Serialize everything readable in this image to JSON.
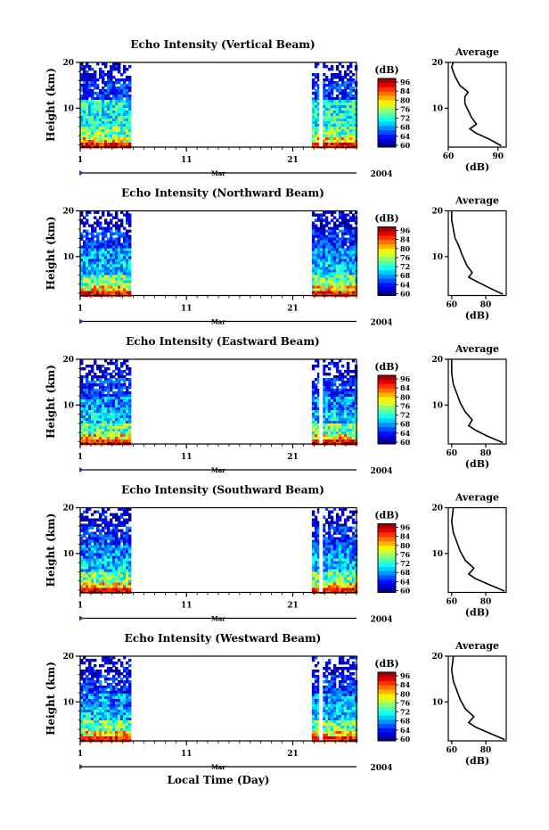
{
  "figure": {
    "xaxis_title": "Local Time (Day)",
    "month_label": "Mar",
    "year_label": "2004"
  },
  "chart_data": [
    {
      "type": "heatmap",
      "title": "Echo Intensity (Vertical Beam)",
      "ylabel": "Height (km)",
      "ylim": [
        1.5,
        20
      ],
      "yticks": [
        "20",
        "10"
      ],
      "xticks": [
        "1",
        "11",
        "21"
      ],
      "data_ranges": [
        [
          1,
          5.6
        ],
        [
          22.8,
          27
        ]
      ],
      "gaps": [
        23.5
      ],
      "colorbar": {
        "unit": "(dB)",
        "ticks": [
          "96",
          "84",
          "80",
          "76",
          "72",
          "68",
          "64",
          "60"
        ]
      },
      "profile": {
        "title": "Average",
        "xlabel": "(dB)",
        "xticks": [
          "60",
          "90"
        ],
        "xlim": [
          60,
          95
        ],
        "ylim": [
          1.5,
          20
        ],
        "yticks": [
          "20",
          "10"
        ],
        "points": [
          [
            92,
            1.8
          ],
          [
            85,
            3.2
          ],
          [
            77,
            4.5
          ],
          [
            73,
            5.5
          ],
          [
            77,
            6.5
          ],
          [
            74,
            8
          ],
          [
            70,
            11
          ],
          [
            70,
            12.5
          ],
          [
            72,
            13.5
          ],
          [
            67,
            15
          ],
          [
            64,
            17
          ],
          [
            62,
            19
          ],
          [
            63,
            20
          ]
        ]
      }
    },
    {
      "type": "heatmap",
      "title": "Echo Intensity (Northward Beam)",
      "ylabel": "Height (km)",
      "ylim": [
        1.5,
        20
      ],
      "yticks": [
        "20",
        "10"
      ],
      "xticks": [
        "1",
        "11",
        "21"
      ],
      "data_ranges": [
        [
          1,
          5.6
        ],
        [
          22.8,
          27
        ]
      ],
      "gaps": [],
      "colorbar": {
        "unit": "(dB)",
        "ticks": [
          "96",
          "84",
          "80",
          "76",
          "72",
          "68",
          "64",
          "60"
        ]
      },
      "profile": {
        "title": "Average",
        "xlabel": "(dB)",
        "xticks": [
          "60",
          "80"
        ],
        "xlim": [
          58,
          92
        ],
        "ylim": [
          1.5,
          20
        ],
        "yticks": [
          "20",
          "10"
        ],
        "points": [
          [
            90,
            1.8
          ],
          [
            82,
            3.2
          ],
          [
            75,
            4.5
          ],
          [
            70,
            5.5
          ],
          [
            72,
            6.5
          ],
          [
            69,
            8
          ],
          [
            66,
            10.5
          ],
          [
            64,
            12.5
          ],
          [
            62,
            14
          ],
          [
            61,
            16
          ],
          [
            60,
            18
          ],
          [
            60,
            20
          ]
        ]
      }
    },
    {
      "type": "heatmap",
      "title": "Echo Intensity (Eastward Beam)",
      "ylabel": "Height (km)",
      "ylim": [
        1.5,
        20
      ],
      "yticks": [
        "20",
        "10"
      ],
      "xticks": [
        "1",
        "11",
        "21"
      ],
      "data_ranges": [
        [
          1,
          5.6
        ],
        [
          22.8,
          27
        ]
      ],
      "gaps": [
        23.5
      ],
      "colorbar": {
        "unit": "(dB)",
        "ticks": [
          "96",
          "84",
          "80",
          "76",
          "72",
          "68",
          "64",
          "60"
        ]
      },
      "profile": {
        "title": "Average",
        "xlabel": "(dB)",
        "xticks": [
          "60",
          "80"
        ],
        "xlim": [
          58,
          92
        ],
        "ylim": [
          1.5,
          20
        ],
        "yticks": [
          "20",
          "10"
        ],
        "points": [
          [
            90,
            1.8
          ],
          [
            81,
            3.2
          ],
          [
            74,
            4.5
          ],
          [
            70,
            5.5
          ],
          [
            72,
            6.8
          ],
          [
            68,
            8.5
          ],
          [
            65,
            10.5
          ],
          [
            63,
            12.5
          ],
          [
            61,
            14.5
          ],
          [
            60,
            17
          ],
          [
            60,
            20
          ]
        ]
      }
    },
    {
      "type": "heatmap",
      "title": "Echo Intensity (Southward Beam)",
      "ylabel": "Height (km)",
      "ylim": [
        1.5,
        20
      ],
      "yticks": [
        "20",
        "10"
      ],
      "xticks": [
        "1",
        "11",
        "21"
      ],
      "data_ranges": [
        [
          1,
          5.6
        ],
        [
          22.8,
          27
        ]
      ],
      "gaps": [
        23.5
      ],
      "colorbar": {
        "unit": "(dB)",
        "ticks": [
          "96",
          "84",
          "80",
          "76",
          "72",
          "68",
          "64",
          "60"
        ]
      },
      "profile": {
        "title": "Average",
        "xlabel": "(dB)",
        "xticks": [
          "60",
          "80"
        ],
        "xlim": [
          58,
          92
        ],
        "ylim": [
          1.5,
          20
        ],
        "yticks": [
          "20",
          "10"
        ],
        "points": [
          [
            91,
            1.8
          ],
          [
            82,
            3.2
          ],
          [
            74,
            4.5
          ],
          [
            70,
            5.5
          ],
          [
            73,
            6.8
          ],
          [
            68,
            8.5
          ],
          [
            65,
            10.5
          ],
          [
            63,
            12.5
          ],
          [
            61,
            14.5
          ],
          [
            60,
            17
          ],
          [
            61,
            20
          ]
        ]
      }
    },
    {
      "type": "heatmap",
      "title": "Echo Intensity (Westward Beam)",
      "ylabel": "Height (km)",
      "ylim": [
        1.5,
        20
      ],
      "yticks": [
        "20",
        "10"
      ],
      "xticks": [
        "1",
        "11",
        "21"
      ],
      "data_ranges": [
        [
          1,
          5.6
        ],
        [
          22.8,
          27
        ]
      ],
      "gaps": [
        23.5
      ],
      "colorbar": {
        "unit": "(dB)",
        "ticks": [
          "96",
          "84",
          "80",
          "76",
          "72",
          "68",
          "64",
          "60"
        ]
      },
      "profile": {
        "title": "Average",
        "xlabel": "(dB)",
        "xticks": [
          "60",
          "80"
        ],
        "xlim": [
          58,
          92
        ],
        "ylim": [
          1.5,
          20
        ],
        "yticks": [
          "20",
          "10"
        ],
        "points": [
          [
            91,
            1.8
          ],
          [
            82,
            3.2
          ],
          [
            74,
            4.5
          ],
          [
            70,
            5.5
          ],
          [
            73,
            6.8
          ],
          [
            68,
            8.5
          ],
          [
            65,
            10.5
          ],
          [
            63,
            12.5
          ],
          [
            61,
            14.5
          ],
          [
            60,
            17
          ],
          [
            61,
            20
          ]
        ]
      }
    }
  ]
}
